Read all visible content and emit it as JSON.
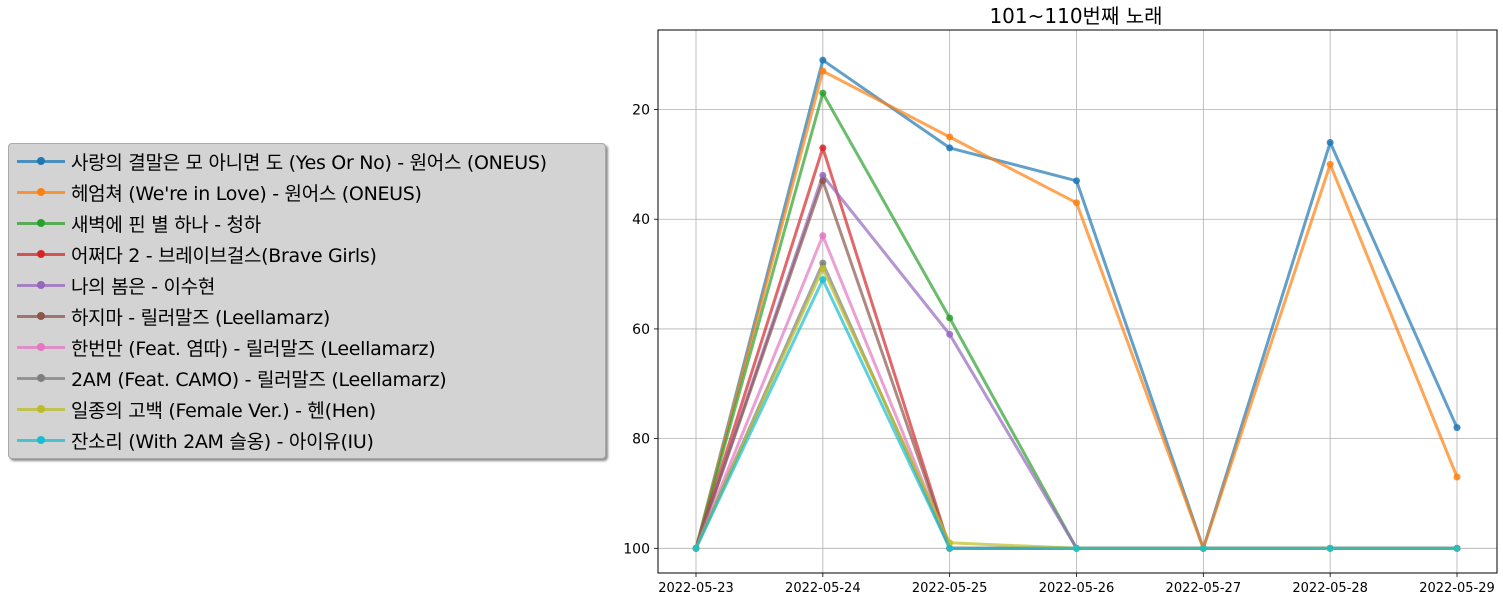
{
  "chart_data": {
    "type": "line",
    "title": "101~110번째 노래",
    "xlabel": "",
    "ylabel": "",
    "x": [
      "2022-05-23",
      "2022-05-24",
      "2022-05-25",
      "2022-05-26",
      "2022-05-27",
      "2022-05-28",
      "2022-05-29"
    ],
    "yticks": [
      20,
      40,
      60,
      80,
      100
    ],
    "ylim": [
      104.5,
      5.5
    ],
    "y_inverted": true,
    "grid": true,
    "legend_position": "outside-left",
    "series": [
      {
        "name": "사랑의 결말은 모 아니면 도 (Yes Or No) - 원어스 (ONEUS)",
        "color": "#1f77b4",
        "values": [
          100,
          11,
          27,
          33,
          100,
          26,
          78
        ]
      },
      {
        "name": "헤엄쳐 (We're in Love) - 원어스 (ONEUS)",
        "color": "#ff7f0e",
        "values": [
          100,
          13,
          25,
          37,
          100,
          30,
          87
        ]
      },
      {
        "name": "새벽에 핀 별 하나 - 청하",
        "color": "#2ca02c",
        "values": [
          100,
          17,
          58,
          100,
          100,
          100,
          100
        ]
      },
      {
        "name": "어쩌다 2 - 브레이브걸스(Brave Girls)",
        "color": "#d62728",
        "values": [
          100,
          27,
          100,
          100,
          100,
          100,
          100
        ]
      },
      {
        "name": "나의 봄은 - 이수현",
        "color": "#9467bd",
        "values": [
          100,
          32,
          61,
          100,
          100,
          100,
          100
        ]
      },
      {
        "name": "하지마 - 릴러말즈 (Leellamarz)",
        "color": "#8c564b",
        "values": [
          100,
          33,
          100,
          100,
          100,
          100,
          100
        ]
      },
      {
        "name": "한번만 (Feat. 염따) - 릴러말즈 (Leellamarz)",
        "color": "#e377c2",
        "values": [
          100,
          43,
          100,
          100,
          100,
          100,
          100
        ]
      },
      {
        "name": "2AM (Feat. CAMO) - 릴러말즈 (Leellamarz)",
        "color": "#7f7f7f",
        "values": [
          100,
          48,
          100,
          100,
          100,
          100,
          100
        ]
      },
      {
        "name": "일종의 고백 (Female Ver.) - 헨(Hen)",
        "color": "#bcbd22",
        "values": [
          100,
          49,
          99,
          100,
          100,
          100,
          100
        ]
      },
      {
        "name": "잔소리 (With 2AM 슬옹) - 아이유(IU)",
        "color": "#17becf",
        "values": [
          100,
          51,
          100,
          100,
          100,
          100,
          100
        ]
      }
    ]
  }
}
